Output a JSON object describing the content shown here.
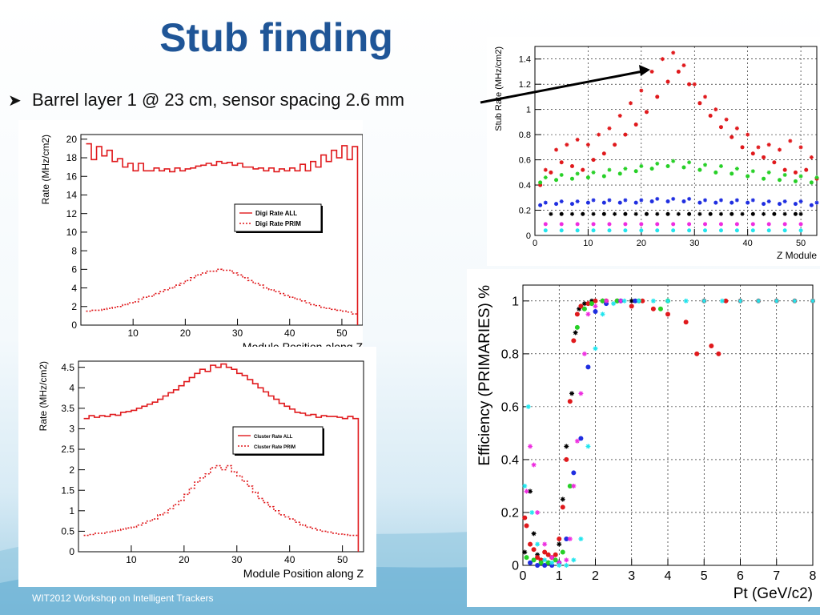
{
  "slide": {
    "title": "Stub finding",
    "bullet": "Barrel layer 1 @ 23 cm, sensor spacing 2.6 mm",
    "footer": "WIT2012 Workshop on Intelligent Trackers"
  },
  "colors": {
    "title": "#1f5597",
    "hist": "#e0191c",
    "red": "#e0191c",
    "green": "#27d027",
    "blue": "#1f2ee0",
    "black": "#000000",
    "magenta": "#ee2ee0",
    "cyan": "#22e5ee"
  },
  "chart_data": [
    {
      "id": "digi",
      "type": "line",
      "ylabel": "Rate (MHz/cm2)",
      "xlabel": "Module Position along Z",
      "xlim": [
        0,
        54
      ],
      "ylim": [
        0,
        20.5
      ],
      "xticks": [
        10,
        20,
        30,
        40,
        50
      ],
      "yticks": [
        0,
        2,
        4,
        6,
        8,
        10,
        12,
        14,
        16,
        18,
        20
      ],
      "legend": [
        "Digi Rate ALL",
        "Digi Rate PRIM"
      ],
      "series": [
        {
          "name": "Digi Rate ALL",
          "values": [
            19.5,
            17.8,
            19.2,
            18.2,
            18.8,
            17.6,
            17.9,
            17.0,
            17.4,
            16.6,
            17.4,
            16.6,
            16.6,
            16.9,
            16.6,
            16.8,
            16.5,
            16.9,
            16.6,
            16.8,
            16.9,
            17.1,
            17.2,
            17.4,
            17.2,
            17.6,
            17.4,
            17.5,
            17.2,
            17.4,
            17.0,
            17.0,
            16.8,
            16.9,
            16.6,
            16.9,
            16.5,
            16.8,
            16.6,
            16.9,
            16.6,
            17.3,
            16.6,
            17.6,
            17.0,
            18.3,
            17.6,
            18.8,
            18.0,
            19.3,
            17.8,
            19.2
          ]
        },
        {
          "name": "Digi Rate PRIM",
          "values": [
            1.5,
            1.6,
            1.6,
            1.7,
            1.8,
            1.9,
            2.0,
            2.2,
            2.4,
            2.5,
            2.8,
            3.0,
            3.1,
            3.4,
            3.6,
            3.8,
            4.0,
            4.3,
            4.5,
            4.8,
            5.1,
            5.4,
            5.6,
            5.8,
            5.8,
            6.0,
            5.9,
            5.9,
            5.6,
            5.4,
            5.1,
            4.8,
            4.5,
            4.3,
            4.0,
            3.8,
            3.6,
            3.4,
            3.2,
            3.0,
            2.8,
            2.6,
            2.4,
            2.2,
            2.1,
            1.9,
            1.8,
            1.7,
            1.6,
            1.5,
            1.4,
            1.2
          ]
        }
      ]
    },
    {
      "id": "cluster",
      "type": "line",
      "ylabel": "Rate (MHz/cm2)",
      "xlabel": "Module Position along Z",
      "xlim": [
        0,
        54
      ],
      "ylim": [
        0,
        4.65
      ],
      "xticks": [
        10,
        20,
        30,
        40,
        50
      ],
      "yticks": [
        0,
        0.5,
        1,
        1.5,
        2,
        2.5,
        3,
        3.5,
        4,
        4.5
      ],
      "legend": [
        "Cluster Rate ALL",
        "Cluster Rate PRIM"
      ],
      "series": [
        {
          "name": "Cluster Rate ALL",
          "values": [
            3.25,
            3.32,
            3.28,
            3.32,
            3.3,
            3.35,
            3.33,
            3.4,
            3.42,
            3.45,
            3.5,
            3.55,
            3.6,
            3.65,
            3.72,
            3.8,
            3.88,
            3.95,
            4.05,
            4.15,
            4.25,
            4.35,
            4.45,
            4.4,
            4.55,
            4.5,
            4.58,
            4.5,
            4.45,
            4.35,
            4.3,
            4.2,
            4.1,
            4.0,
            3.9,
            3.8,
            3.72,
            3.62,
            3.55,
            3.48,
            3.4,
            3.38,
            3.33,
            3.35,
            3.28,
            3.32,
            3.3,
            3.3,
            3.28,
            3.25,
            3.3,
            3.25
          ]
        },
        {
          "name": "Cluster Rate PRIM",
          "values": [
            0.4,
            0.42,
            0.45,
            0.45,
            0.48,
            0.5,
            0.52,
            0.55,
            0.58,
            0.6,
            0.65,
            0.7,
            0.75,
            0.8,
            0.9,
            0.95,
            1.05,
            1.15,
            1.25,
            1.4,
            1.55,
            1.7,
            1.8,
            1.9,
            2.05,
            2.1,
            2.0,
            2.1,
            1.95,
            1.85,
            1.72,
            1.6,
            1.45,
            1.3,
            1.2,
            1.1,
            1.0,
            0.9,
            0.85,
            0.8,
            0.72,
            0.65,
            0.6,
            0.57,
            0.53,
            0.5,
            0.48,
            0.45,
            0.43,
            0.42,
            0.4,
            0.4
          ]
        }
      ]
    },
    {
      "id": "stub",
      "type": "scatter",
      "ylabel": "Stub Rate (MHz/cm2)",
      "xlabel": "Z Module",
      "xlim": [
        0,
        53
      ],
      "ylim": [
        0,
        1.5
      ],
      "xticks": [
        0,
        10,
        20,
        30,
        40,
        50
      ],
      "yticks": [
        0,
        0.2,
        0.4,
        0.6,
        0.8,
        1,
        1.2,
        1.4
      ],
      "series": [
        {
          "name": "red-star",
          "marker": "star",
          "color": "red",
          "x": [
            2,
            4,
            6,
            8,
            10,
            12,
            14,
            16,
            18,
            20,
            22,
            24,
            26,
            28,
            30,
            32,
            34,
            36,
            38,
            40,
            42,
            44,
            46,
            48,
            50,
            52
          ],
          "y": [
            0.52,
            0.68,
            0.72,
            0.76,
            0.72,
            0.8,
            0.85,
            0.95,
            1.05,
            1.15,
            1.3,
            1.4,
            1.45,
            1.35,
            1.2,
            1.1,
            1.0,
            0.92,
            0.85,
            0.8,
            0.7,
            0.72,
            0.68,
            0.75,
            0.7,
            0.62
          ]
        },
        {
          "name": "red-dot",
          "marker": "dot",
          "color": "red",
          "x": [
            1,
            3,
            5,
            7,
            9,
            11,
            13,
            15,
            17,
            19,
            21,
            23,
            25,
            27,
            29,
            31,
            33,
            35,
            37,
            39,
            41,
            43,
            45,
            47,
            49,
            51,
            53
          ],
          "y": [
            0.4,
            0.5,
            0.58,
            0.55,
            0.52,
            0.6,
            0.65,
            0.72,
            0.8,
            0.88,
            0.98,
            1.1,
            1.22,
            1.3,
            1.2,
            1.05,
            0.95,
            0.86,
            0.78,
            0.7,
            0.65,
            0.62,
            0.58,
            0.52,
            0.5,
            0.52,
            0.45
          ]
        },
        {
          "name": "green-star",
          "marker": "star",
          "color": "green",
          "x": [
            2,
            5,
            8,
            11,
            14,
            17,
            20,
            23,
            26,
            29,
            32,
            35,
            38,
            41,
            44,
            47,
            50,
            53
          ],
          "y": [
            0.46,
            0.48,
            0.49,
            0.5,
            0.52,
            0.53,
            0.55,
            0.57,
            0.59,
            0.58,
            0.56,
            0.55,
            0.53,
            0.51,
            0.5,
            0.48,
            0.47,
            0.46
          ]
        },
        {
          "name": "green-dot",
          "marker": "dot",
          "color": "green",
          "x": [
            1,
            4,
            7,
            10,
            13,
            16,
            19,
            22,
            25,
            28,
            31,
            34,
            37,
            40,
            43,
            46,
            49,
            52
          ],
          "y": [
            0.42,
            0.44,
            0.45,
            0.46,
            0.47,
            0.49,
            0.51,
            0.53,
            0.55,
            0.54,
            0.52,
            0.5,
            0.49,
            0.47,
            0.45,
            0.44,
            0.43,
            0.42
          ]
        },
        {
          "name": "blue-star",
          "marker": "star",
          "color": "blue",
          "x": [
            2,
            5,
            8,
            11,
            14,
            17,
            20,
            23,
            26,
            29,
            32,
            35,
            38,
            41,
            44,
            47,
            50,
            53
          ],
          "y": [
            0.26,
            0.27,
            0.27,
            0.28,
            0.28,
            0.28,
            0.28,
            0.29,
            0.29,
            0.29,
            0.28,
            0.28,
            0.28,
            0.28,
            0.27,
            0.27,
            0.27,
            0.26
          ]
        },
        {
          "name": "blue-dot",
          "marker": "dot",
          "color": "blue",
          "x": [
            1,
            4,
            7,
            10,
            13,
            16,
            19,
            22,
            25,
            28,
            31,
            34,
            37,
            40,
            43,
            46,
            49,
            52
          ],
          "y": [
            0.24,
            0.25,
            0.25,
            0.26,
            0.26,
            0.26,
            0.26,
            0.27,
            0.27,
            0.27,
            0.26,
            0.26,
            0.26,
            0.26,
            0.25,
            0.25,
            0.25,
            0.24
          ]
        },
        {
          "name": "black-star",
          "marker": "star",
          "color": "black",
          "x": [
            3,
            7,
            11,
            15,
            19,
            23,
            27,
            31,
            35,
            39,
            43,
            47,
            50
          ],
          "y": [
            0.17,
            0.17,
            0.17,
            0.17,
            0.17,
            0.17,
            0.17,
            0.17,
            0.17,
            0.17,
            0.17,
            0.17,
            0.17
          ]
        },
        {
          "name": "black-dot",
          "marker": "dot",
          "color": "black",
          "x": [
            5,
            9,
            13,
            17,
            21,
            25,
            29,
            33,
            37,
            41,
            45,
            49
          ],
          "y": [
            0.17,
            0.17,
            0.17,
            0.17,
            0.17,
            0.17,
            0.17,
            0.17,
            0.17,
            0.17,
            0.17,
            0.17
          ]
        },
        {
          "name": "magenta-dot",
          "marker": "dot",
          "color": "magenta",
          "x": [
            2,
            5,
            8,
            11,
            14,
            17,
            20,
            23,
            26,
            29,
            32,
            35,
            38,
            41,
            44,
            47,
            50
          ],
          "y": [
            0.09,
            0.09,
            0.09,
            0.09,
            0.09,
            0.09,
            0.09,
            0.09,
            0.09,
            0.09,
            0.09,
            0.09,
            0.09,
            0.09,
            0.09,
            0.09,
            0.09
          ]
        },
        {
          "name": "cyan-dot",
          "marker": "dot",
          "color": "cyan",
          "x": [
            2,
            5,
            8,
            11,
            14,
            17,
            20,
            23,
            26,
            29,
            32,
            35,
            38,
            41,
            44,
            47,
            50
          ],
          "y": [
            0.04,
            0.04,
            0.04,
            0.04,
            0.04,
            0.04,
            0.04,
            0.04,
            0.04,
            0.04,
            0.04,
            0.04,
            0.04,
            0.04,
            0.04,
            0.04,
            0.04
          ]
        }
      ]
    },
    {
      "id": "eff",
      "type": "scatter",
      "ylabel": "Efficiency (PRIMARIES) %",
      "xlabel": "Pt (GeV/c2)",
      "xlim": [
        0,
        8
      ],
      "ylim": [
        0,
        1.06
      ],
      "xticks": [
        0,
        1,
        2,
        3,
        4,
        5,
        6,
        7,
        8
      ],
      "yticks": [
        0,
        0.2,
        0.4,
        0.6,
        0.8,
        1
      ],
      "series": [
        {
          "name": "black",
          "marker": "star",
          "color": "black",
          "x": [
            0.05,
            0.2,
            0.3,
            0.4,
            0.5,
            0.7,
            1.0,
            1.1,
            1.2,
            1.35,
            1.45,
            1.55,
            1.7,
            1.9,
            2.2,
            2.6,
            3.0
          ],
          "y": [
            0.05,
            0.28,
            0.12,
            0.04,
            0.02,
            0.01,
            0.08,
            0.25,
            0.45,
            0.65,
            0.88,
            0.97,
            0.99,
            1.0,
            1.0,
            1.0,
            1.0
          ]
        },
        {
          "name": "red",
          "marker": "dot",
          "color": "red",
          "x": [
            0.05,
            0.1,
            0.2,
            0.3,
            0.4,
            0.5,
            0.6,
            0.7,
            0.8,
            0.9,
            1.0,
            1.1,
            1.2,
            1.3,
            1.4,
            1.5,
            1.6,
            1.8,
            2.0,
            2.3,
            2.6,
            3.0,
            3.3,
            3.6,
            4.0,
            4.5,
            4.8,
            5.0,
            5.2,
            5.4,
            5.6,
            6.0,
            6.5,
            7.0,
            7.5,
            8.0
          ],
          "y": [
            0.18,
            0.15,
            0.08,
            0.06,
            0.03,
            0.02,
            0.05,
            0.04,
            0.03,
            0.04,
            0.1,
            0.22,
            0.4,
            0.62,
            0.85,
            0.95,
            0.98,
            0.99,
            1.0,
            1.0,
            1.0,
            0.98,
            1.0,
            0.97,
            0.95,
            0.92,
            0.8,
            1.0,
            0.83,
            0.8,
            1.0,
            1.0,
            1.0,
            1.0,
            1.0,
            1.0
          ]
        },
        {
          "name": "green",
          "marker": "dot",
          "color": "green",
          "x": [
            0.1,
            0.3,
            0.5,
            0.7,
            0.9,
            1.1,
            1.3,
            1.5,
            1.7,
            1.9,
            2.2,
            2.6,
            3.2,
            3.8,
            4.0
          ],
          "y": [
            0.03,
            0.02,
            0.01,
            0.01,
            0.02,
            0.05,
            0.3,
            0.9,
            0.97,
            0.99,
            1.0,
            1.0,
            1.0,
            0.97,
            1.0
          ]
        },
        {
          "name": "blue",
          "marker": "dot",
          "color": "blue",
          "x": [
            0.2,
            0.4,
            0.6,
            0.8,
            1.0,
            1.2,
            1.4,
            1.6,
            1.8,
            2.0,
            2.3,
            2.7,
            3.1
          ],
          "y": [
            0.01,
            0.0,
            0.0,
            0.0,
            0.01,
            0.1,
            0.35,
            0.48,
            0.75,
            0.96,
            0.99,
            1.0,
            1.0
          ]
        },
        {
          "name": "magenta",
          "marker": "star",
          "color": "magenta",
          "x": [
            0.1,
            0.2,
            0.3,
            0.4,
            0.6,
            0.8,
            1.0,
            1.2,
            1.3,
            1.4,
            1.5,
            1.6,
            1.7,
            1.8,
            2.0,
            2.3,
            2.7
          ],
          "y": [
            0.28,
            0.45,
            0.38,
            0.2,
            0.08,
            0.03,
            0.01,
            0.02,
            0.1,
            0.3,
            0.47,
            0.65,
            0.8,
            0.95,
            0.98,
            1.0,
            1.0
          ]
        },
        {
          "name": "cyan",
          "marker": "star",
          "color": "cyan",
          "x": [
            0.05,
            0.15,
            0.25,
            0.4,
            0.6,
            0.8,
            1.0,
            1.2,
            1.4,
            1.6,
            1.8,
            2.0,
            2.2,
            2.5,
            2.8,
            3.2,
            3.6,
            4.0,
            4.5,
            5.0,
            5.5,
            6.0,
            6.5,
            7.0,
            7.5,
            8.0
          ],
          "y": [
            0.3,
            0.6,
            0.2,
            0.08,
            0.02,
            0.01,
            0.0,
            0.0,
            0.02,
            0.1,
            0.45,
            0.82,
            0.95,
            0.99,
            1.0,
            1.0,
            1.0,
            1.0,
            1.0,
            1.0,
            1.0,
            1.0,
            1.0,
            1.0,
            1.0,
            1.0
          ]
        }
      ]
    }
  ]
}
